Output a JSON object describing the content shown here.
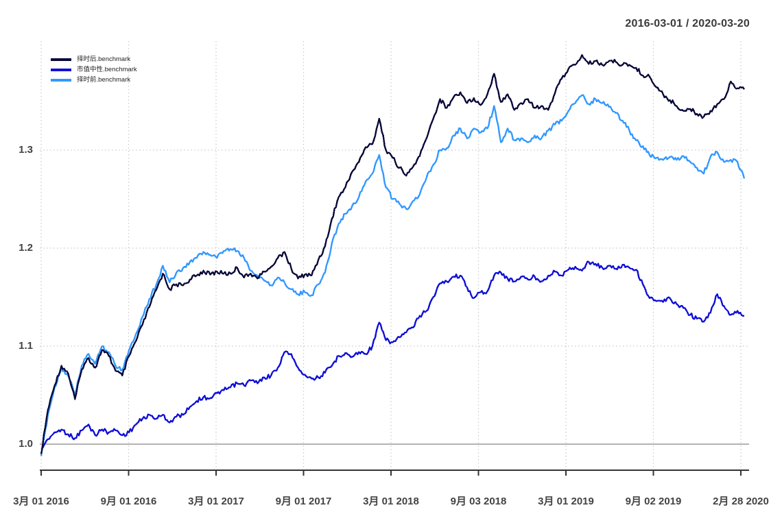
{
  "header": {
    "date_range": "2016-03-01 / 2020-03-20"
  },
  "legend": [
    {
      "label": "择时后.benchmark",
      "color": "#0a0a3a"
    },
    {
      "label": "市值中性.benchmark",
      "color": "#1111d6"
    },
    {
      "label": "择时前.benchmark",
      "color": "#3399ff"
    }
  ],
  "chart_data": {
    "type": "line",
    "title": "2016-03-01 / 2020-03-20",
    "xlabel": "",
    "ylabel": "",
    "x_range": [
      "2016-03-01",
      "2020-03-20"
    ],
    "x_tick_labels": [
      "3月 01 2016",
      "9月 01 2016",
      "3月 01 2017",
      "9月 01 2017",
      "3月 01 2018",
      "9月 03 2018",
      "3月 01 2019",
      "9月 02 2019",
      "2月 28 2020"
    ],
    "y_tick_labels": [
      "1.0",
      "1.1",
      "1.2",
      "1.3"
    ],
    "ylim": [
      0.97,
      1.42
    ],
    "grid": true,
    "baseline_value": 1.0,
    "legend_position": "top-left",
    "sampling": "evenly spaced across x_range",
    "series": [
      {
        "name": "择时后.benchmark",
        "color": "#0a0a3a",
        "values": [
          0.99,
          1.035,
          1.06,
          1.08,
          1.072,
          1.046,
          1.076,
          1.088,
          1.078,
          1.096,
          1.09,
          1.075,
          1.07,
          1.09,
          1.105,
          1.122,
          1.14,
          1.157,
          1.174,
          1.158,
          1.163,
          1.162,
          1.168,
          1.172,
          1.177,
          1.173,
          1.176,
          1.174,
          1.174,
          1.18,
          1.17,
          1.174,
          1.169,
          1.176,
          1.181,
          1.19,
          1.196,
          1.179,
          1.169,
          1.173,
          1.172,
          1.188,
          1.202,
          1.23,
          1.252,
          1.262,
          1.278,
          1.288,
          1.303,
          1.306,
          1.332,
          1.3,
          1.292,
          1.282,
          1.274,
          1.283,
          1.294,
          1.312,
          1.332,
          1.352,
          1.343,
          1.354,
          1.359,
          1.348,
          1.353,
          1.346,
          1.357,
          1.378,
          1.349,
          1.357,
          1.341,
          1.348,
          1.352,
          1.343,
          1.345,
          1.341,
          1.358,
          1.373,
          1.383,
          1.387,
          1.397,
          1.388,
          1.391,
          1.387,
          1.391,
          1.39,
          1.387,
          1.387,
          1.384,
          1.376,
          1.375,
          1.364,
          1.357,
          1.351,
          1.345,
          1.34,
          1.342,
          1.337,
          1.334,
          1.34,
          1.347,
          1.352,
          1.37,
          1.363,
          1.362
        ]
      },
      {
        "name": "市值中性.benchmark",
        "color": "#1111d6",
        "values": [
          0.995,
          1.005,
          1.012,
          1.015,
          1.01,
          1.006,
          1.014,
          1.02,
          1.009,
          1.015,
          1.012,
          1.014,
          1.009,
          1.012,
          1.02,
          1.026,
          1.03,
          1.026,
          1.03,
          1.022,
          1.028,
          1.03,
          1.038,
          1.044,
          1.048,
          1.047,
          1.052,
          1.055,
          1.058,
          1.062,
          1.06,
          1.065,
          1.062,
          1.068,
          1.07,
          1.078,
          1.094,
          1.092,
          1.078,
          1.071,
          1.067,
          1.068,
          1.073,
          1.08,
          1.09,
          1.093,
          1.089,
          1.094,
          1.092,
          1.1,
          1.124,
          1.106,
          1.104,
          1.109,
          1.114,
          1.119,
          1.131,
          1.136,
          1.15,
          1.164,
          1.166,
          1.171,
          1.172,
          1.16,
          1.149,
          1.155,
          1.156,
          1.172,
          1.175,
          1.169,
          1.166,
          1.171,
          1.168,
          1.171,
          1.166,
          1.172,
          1.176,
          1.172,
          1.178,
          1.181,
          1.177,
          1.186,
          1.184,
          1.18,
          1.182,
          1.179,
          1.183,
          1.18,
          1.178,
          1.163,
          1.149,
          1.146,
          1.145,
          1.149,
          1.143,
          1.139,
          1.132,
          1.128,
          1.125,
          1.134,
          1.153,
          1.141,
          1.132,
          1.136,
          1.131
        ]
      },
      {
        "name": "择时前.benchmark",
        "color": "#3399ff",
        "values": [
          0.988,
          1.03,
          1.058,
          1.078,
          1.07,
          1.05,
          1.08,
          1.092,
          1.082,
          1.1,
          1.094,
          1.08,
          1.076,
          1.096,
          1.112,
          1.13,
          1.148,
          1.162,
          1.182,
          1.165,
          1.175,
          1.18,
          1.186,
          1.19,
          1.196,
          1.193,
          1.19,
          1.197,
          1.199,
          1.197,
          1.19,
          1.177,
          1.172,
          1.167,
          1.162,
          1.17,
          1.165,
          1.158,
          1.153,
          1.155,
          1.152,
          1.163,
          1.175,
          1.205,
          1.225,
          1.235,
          1.243,
          1.252,
          1.268,
          1.276,
          1.295,
          1.262,
          1.25,
          1.245,
          1.24,
          1.248,
          1.255,
          1.272,
          1.285,
          1.3,
          1.302,
          1.315,
          1.322,
          1.312,
          1.322,
          1.318,
          1.322,
          1.345,
          1.308,
          1.322,
          1.31,
          1.312,
          1.308,
          1.315,
          1.312,
          1.32,
          1.326,
          1.33,
          1.34,
          1.348,
          1.356,
          1.347,
          1.352,
          1.348,
          1.344,
          1.338,
          1.33,
          1.32,
          1.31,
          1.304,
          1.295,
          1.292,
          1.29,
          1.293,
          1.29,
          1.294,
          1.288,
          1.282,
          1.276,
          1.293,
          1.298,
          1.288,
          1.29,
          1.288,
          1.271
        ]
      }
    ]
  }
}
